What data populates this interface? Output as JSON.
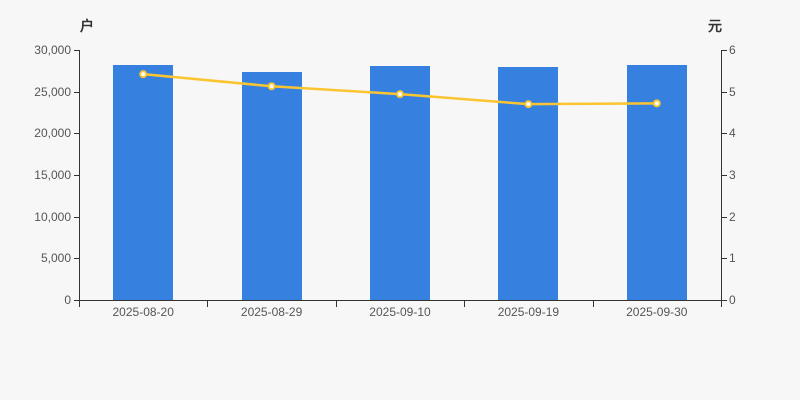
{
  "page": {
    "background": "#f7f7f7"
  },
  "colors": {
    "bar": "#3680e0",
    "line": "#fbc531",
    "marker_fill": "#ffffff",
    "axis": "#333333",
    "tick_label": "#555555",
    "axis_title": "#333333"
  },
  "chart_data": {
    "type": "bar",
    "subtype": "dual-axis-bar-line",
    "categories": [
      "2025-08-20",
      "2025-08-29",
      "2025-09-10",
      "2025-09-19",
      "2025-09-30"
    ],
    "series": [
      {
        "type": "bar",
        "y_axis": "left",
        "values": [
          28250,
          27400,
          28100,
          28000,
          28150
        ]
      },
      {
        "type": "line",
        "y_axis": "right",
        "values": [
          5.42,
          5.13,
          4.94,
          4.7,
          4.72
        ]
      }
    ],
    "left_axis": {
      "title": "户",
      "range": [
        0,
        30000
      ],
      "tick_interval": 5000,
      "tick_labels": [
        "0",
        "5,000",
        "10,000",
        "15,000",
        "20,000",
        "25,000",
        "30,000"
      ]
    },
    "right_axis": {
      "title": "元",
      "range": [
        0,
        6
      ],
      "tick_interval": 1,
      "tick_labels": [
        "0",
        "1",
        "2",
        "3",
        "4",
        "5",
        "6"
      ]
    },
    "grid": "off",
    "legend": "none"
  }
}
